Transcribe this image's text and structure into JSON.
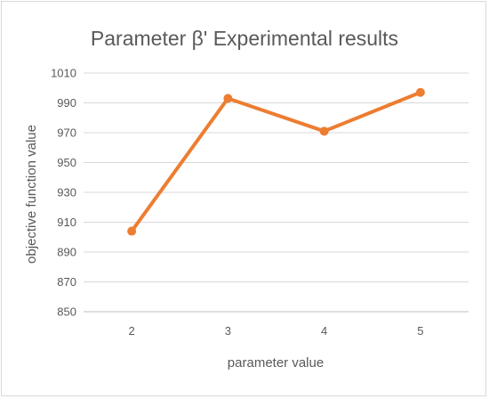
{
  "chart_data": {
    "type": "line",
    "title": "Parameter β' Experimental results",
    "xlabel": "parameter value",
    "ylabel": "objective function value",
    "categories": [
      "2",
      "3",
      "4",
      "5"
    ],
    "series": [
      {
        "values": [
          904,
          993,
          971,
          997
        ]
      }
    ],
    "ylim": [
      850,
      1010
    ],
    "yticks": [
      850,
      870,
      890,
      910,
      930,
      950,
      970,
      990,
      1010
    ],
    "grid": true,
    "legend": "none",
    "colors": {
      "line": "#ED7D31",
      "grid": "#d9d9d9",
      "axis": "#bfbfbf",
      "text": "#595959"
    }
  }
}
